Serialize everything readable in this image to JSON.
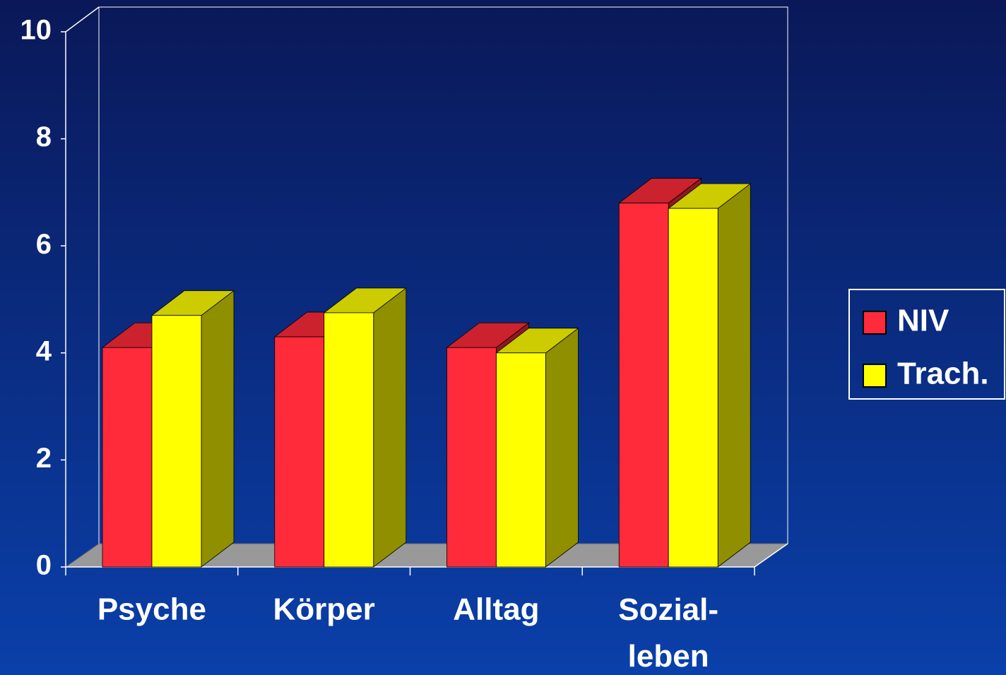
{
  "chart_data": {
    "type": "bar3d",
    "categories": [
      "Psyche",
      "Körper",
      "Alltag",
      "Sozial-\nleben"
    ],
    "series": [
      {
        "name": "NIV",
        "color": "#ff2a3a",
        "values": [
          4.1,
          4.3,
          4.1,
          6.8
        ]
      },
      {
        "name": "Trach.",
        "color": "#ffff00",
        "values": [
          4.7,
          4.75,
          4.0,
          6.7
        ]
      }
    ],
    "ylim": [
      0,
      10
    ],
    "yticks": [
      0,
      2,
      4,
      6,
      8,
      10
    ],
    "grid": false,
    "legend": "right"
  }
}
